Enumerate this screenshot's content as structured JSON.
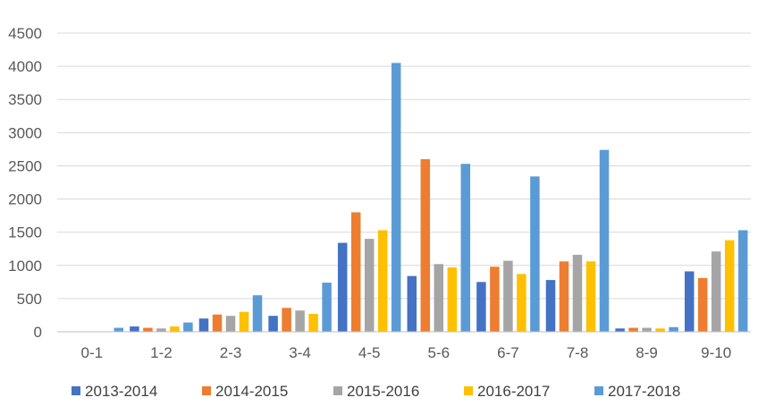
{
  "chart_data": {
    "type": "bar",
    "title": "",
    "xlabel": "",
    "ylabel": "",
    "ylim": [
      0,
      4500
    ],
    "yticks": [
      0,
      500,
      1000,
      1500,
      2000,
      2500,
      3000,
      3500,
      4000,
      4500
    ],
    "grid": true,
    "legend_position": "bottom",
    "categories": [
      "0-1",
      "1-2",
      "2-3",
      "3-4",
      "4-5",
      "5-6",
      "6-7",
      "7-8",
      "8-9",
      "9-10"
    ],
    "series": [
      {
        "name": "2013-2014",
        "color": "#4472c4",
        "values": [
          0,
          80,
          200,
          240,
          1340,
          840,
          750,
          780,
          50,
          910
        ]
      },
      {
        "name": "2014-2015",
        "color": "#ed7d31",
        "values": [
          0,
          60,
          260,
          360,
          1800,
          2600,
          980,
          1060,
          60,
          810
        ]
      },
      {
        "name": "2015-2016",
        "color": "#a5a5a5",
        "values": [
          0,
          50,
          240,
          320,
          1400,
          1020,
          1070,
          1160,
          60,
          1210
        ]
      },
      {
        "name": "2016-2017",
        "color": "#ffc000",
        "values": [
          0,
          80,
          300,
          270,
          1530,
          970,
          870,
          1060,
          50,
          1380
        ]
      },
      {
        "name": "2017-2018",
        "color": "#5b9bd5",
        "values": [
          60,
          140,
          550,
          740,
          4050,
          2530,
          2340,
          2740,
          70,
          1530
        ]
      }
    ]
  }
}
